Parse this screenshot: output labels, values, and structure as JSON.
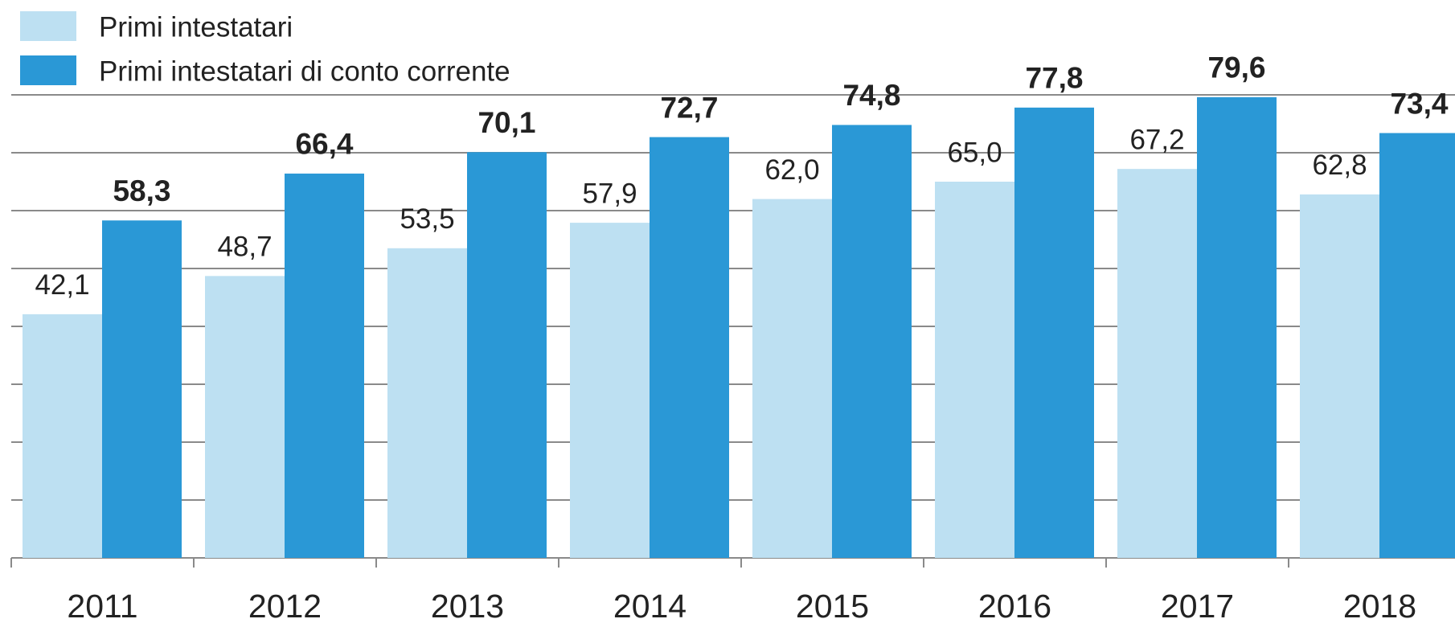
{
  "chart_data": {
    "type": "bar",
    "categories": [
      "2011",
      "2012",
      "2013",
      "2014",
      "2015",
      "2016",
      "2017",
      "2018"
    ],
    "series": [
      {
        "name": "Primi intestatari",
        "color": "#bde0f2",
        "values": [
          42.1,
          48.7,
          53.5,
          57.9,
          62.0,
          65.0,
          67.2,
          62.8
        ],
        "value_labels": [
          "42,1",
          "48,7",
          "53,5",
          "57,9",
          "62,0",
          "65,0",
          "67,2",
          "62,8"
        ]
      },
      {
        "name": "Primi intestatari di conto corrente",
        "color": "#2a98d6",
        "values": [
          58.3,
          66.4,
          70.1,
          72.7,
          74.8,
          77.8,
          79.6,
          73.4
        ],
        "value_labels": [
          "58,3",
          "66,4",
          "70,1",
          "72,7",
          "74,8",
          "77,8",
          "79,6",
          "73,4"
        ]
      }
    ],
    "ylim": [
      0,
      80
    ],
    "yticks": [
      0,
      10,
      20,
      30,
      40,
      50,
      60,
      70,
      80
    ],
    "grid": true
  }
}
